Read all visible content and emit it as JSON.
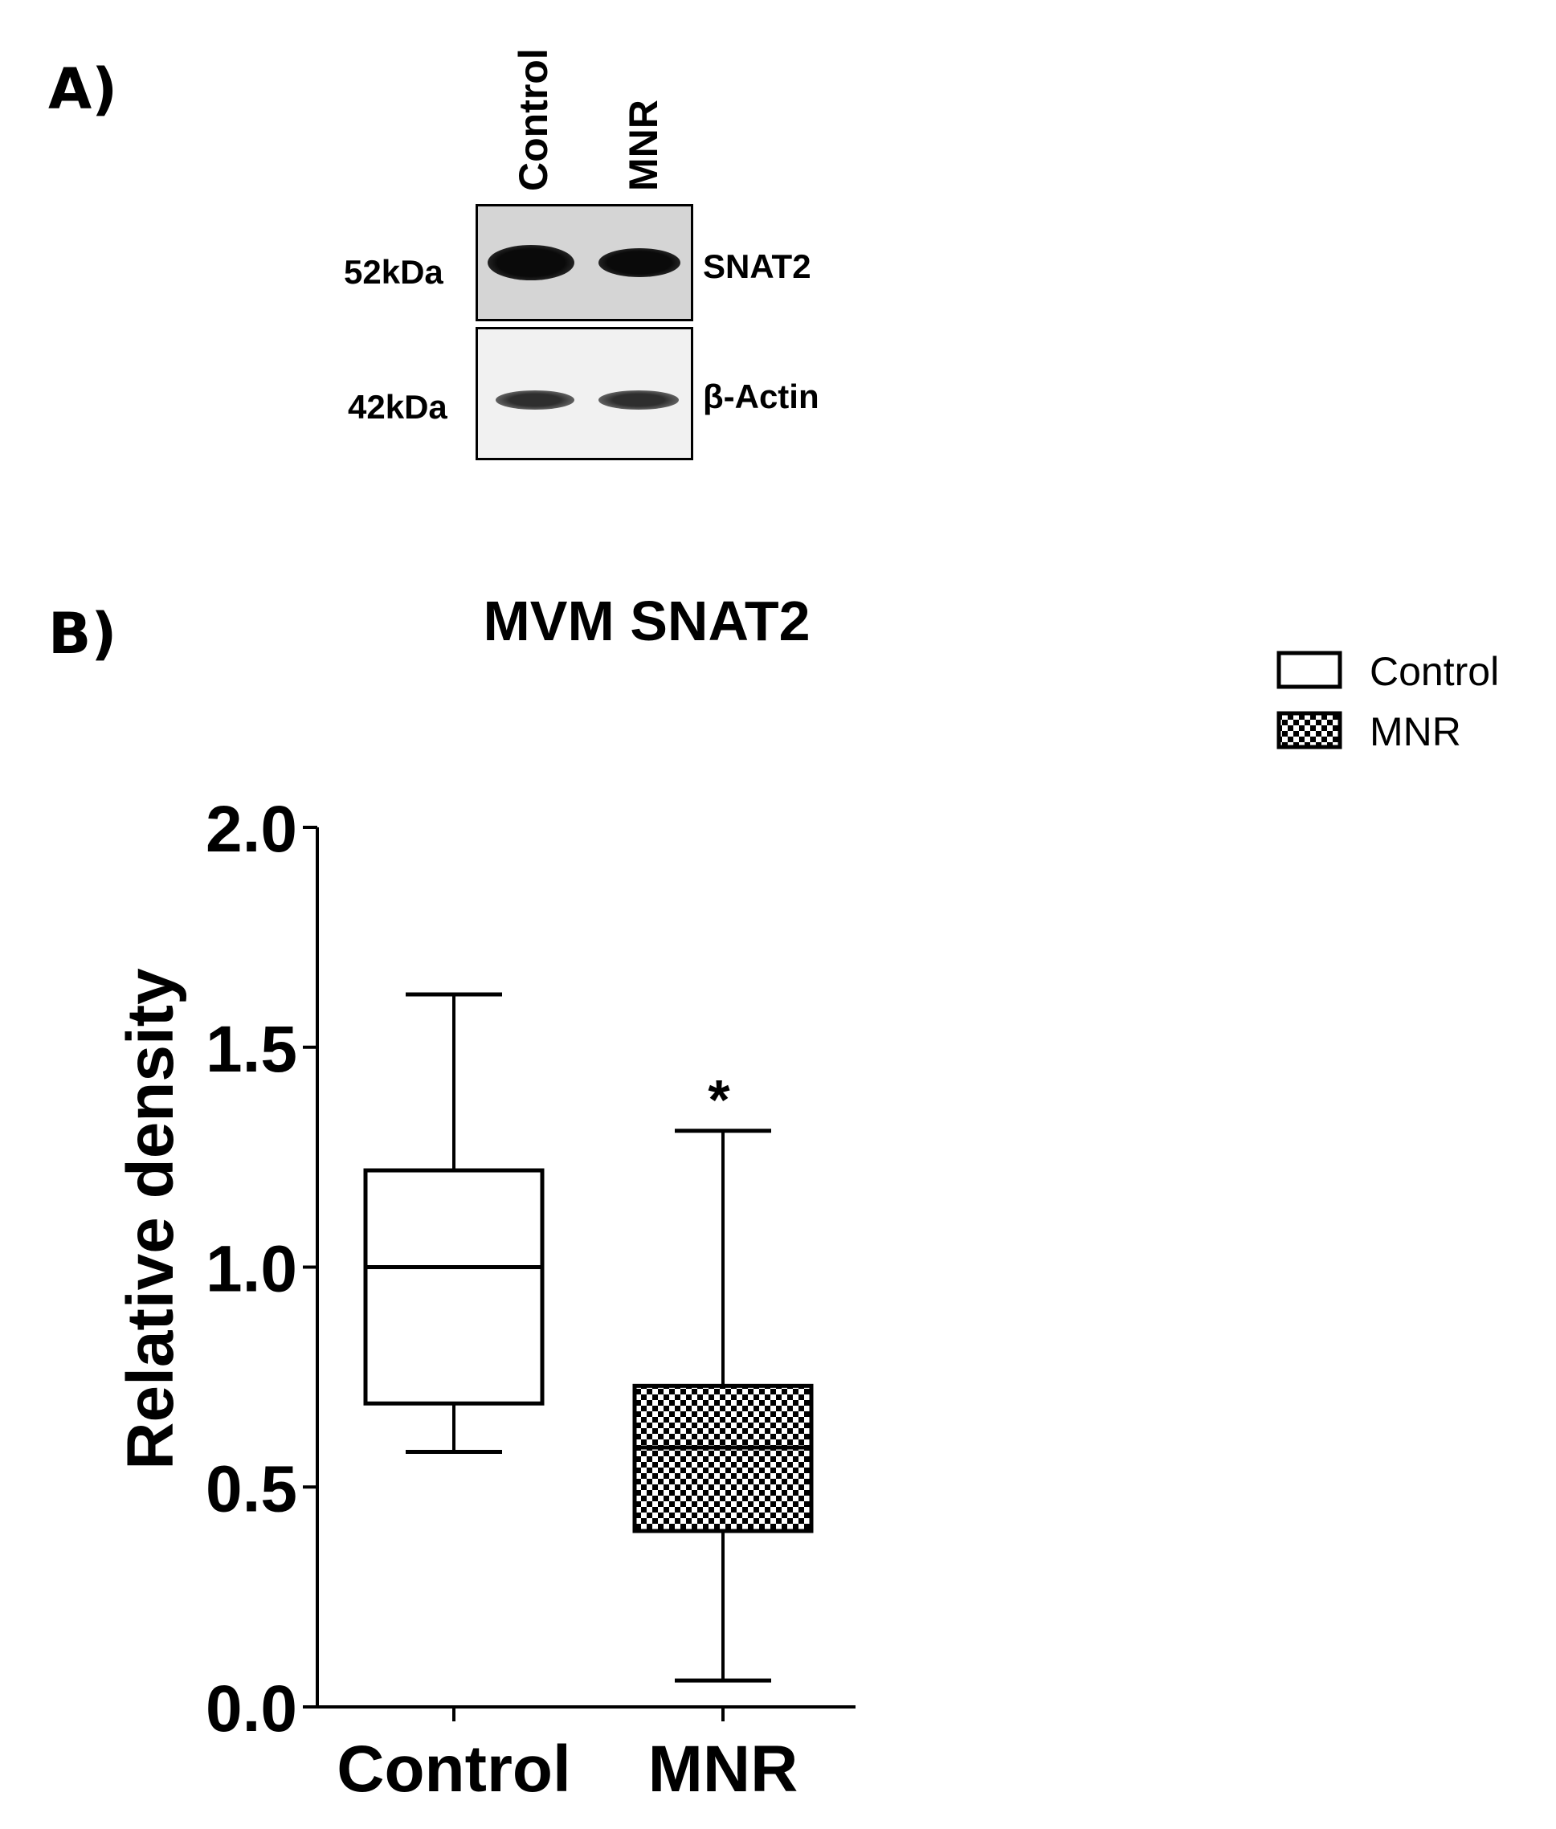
{
  "panel_a": {
    "letter": "A)",
    "lanes": [
      "Control",
      "MNR"
    ],
    "markers": [
      {
        "size": "52kDa",
        "protein": "SNAT2"
      },
      {
        "size": "42kDa",
        "protein": "β-Actin"
      }
    ]
  },
  "panel_b": {
    "letter": "B)"
  },
  "chart_data": {
    "type": "box",
    "title": "MVM SNAT2",
    "xlabel": "",
    "ylabel": "Relative density",
    "ylim": [
      0,
      2.0
    ],
    "yticks": [
      "0.0",
      "0.5",
      "1.0",
      "1.5",
      "2.0"
    ],
    "categories": [
      "Control",
      "MNR"
    ],
    "series": [
      {
        "name": "Control",
        "min": 0.58,
        "q1": 0.69,
        "median": 1.0,
        "q3": 1.22,
        "max": 1.62,
        "fill": "white",
        "annotation": ""
      },
      {
        "name": "MNR",
        "min": 0.06,
        "q1": 0.4,
        "median": 0.59,
        "q3": 0.73,
        "max": 1.31,
        "fill": "checker",
        "annotation": "*"
      }
    ],
    "legend": {
      "position": "top-right",
      "entries": [
        "Control",
        "MNR"
      ]
    },
    "grid": false
  }
}
